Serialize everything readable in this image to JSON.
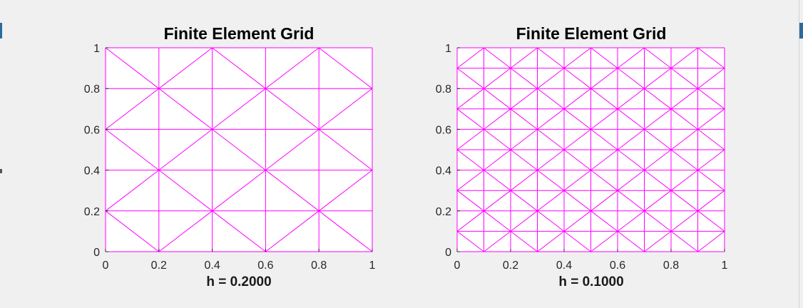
{
  "chart_data": [
    {
      "type": "mesh",
      "title": "Finite Element Grid",
      "xlabel": "h = 0.2000",
      "ylabel": "",
      "h": 0.2,
      "xlim": [
        0,
        1
      ],
      "ylim": [
        0,
        1
      ],
      "xticks": [
        "0",
        "0.2",
        "0.4",
        "0.6",
        "0.8",
        "1"
      ],
      "yticks": [
        "0",
        "0.2",
        "0.4",
        "0.6",
        "0.8",
        "1"
      ],
      "mesh_color": "#ff00ff",
      "grid": false
    },
    {
      "type": "mesh",
      "title": "Finite Element Grid",
      "xlabel": "h = 0.1000",
      "ylabel": "",
      "h": 0.1,
      "xlim": [
        0,
        1
      ],
      "ylim": [
        0,
        1
      ],
      "xticks": [
        "0",
        "0.2",
        "0.4",
        "0.6",
        "0.8",
        "1"
      ],
      "yticks": [
        "0",
        "0.2",
        "0.4",
        "0.6",
        "0.8",
        "1"
      ],
      "mesh_color": "#ff00ff",
      "grid": false
    }
  ]
}
